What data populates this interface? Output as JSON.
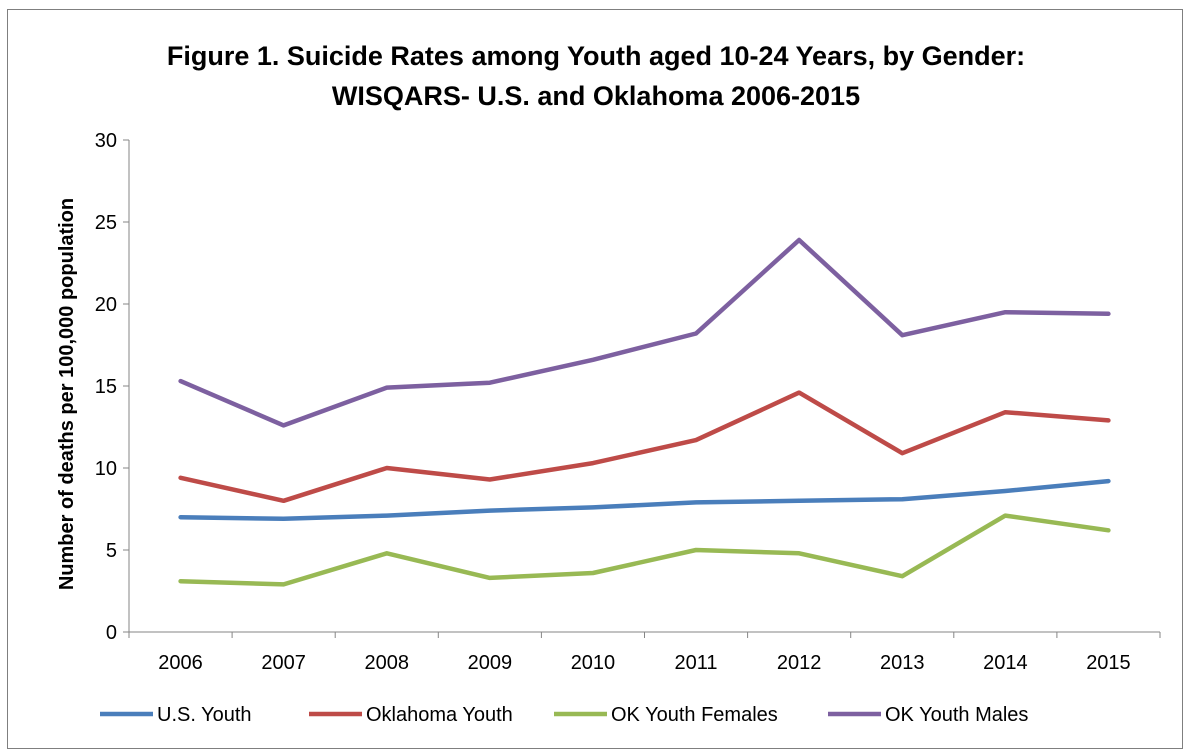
{
  "chart_data": {
    "type": "line",
    "title": [
      "Figure 1. Suicide Rates among Youth aged 10-24 Years, by Gender:",
      "WISQARS- U.S. and Oklahoma 2006-2015"
    ],
    "xlabel": "",
    "ylabel": "Number of deaths per 100,000 population",
    "categories": [
      "2006",
      "2007",
      "2008",
      "2009",
      "2010",
      "2011",
      "2012",
      "2013",
      "2014",
      "2015"
    ],
    "ylim": [
      0,
      30
    ],
    "yticks": [
      "0",
      "5",
      "10",
      "15",
      "20",
      "25",
      "30"
    ],
    "grid": false,
    "legend_position": "bottom",
    "series": [
      {
        "name": "U.S. Youth",
        "color": "#4a7ebb",
        "values": [
          7.0,
          6.9,
          7.1,
          7.4,
          7.6,
          7.9,
          8.0,
          8.1,
          8.6,
          9.2
        ]
      },
      {
        "name": "Oklahoma Youth",
        "color": "#be4b48",
        "values": [
          9.4,
          8.0,
          10.0,
          9.3,
          10.3,
          11.7,
          14.6,
          10.9,
          13.4,
          12.9
        ]
      },
      {
        "name": "OK Youth Females",
        "color": "#98b954",
        "values": [
          3.1,
          2.9,
          4.8,
          3.3,
          3.6,
          5.0,
          4.8,
          3.4,
          7.1,
          6.2
        ]
      },
      {
        "name": "OK Youth Males",
        "color": "#7d60a0",
        "values": [
          15.3,
          12.6,
          14.9,
          15.2,
          16.6,
          18.2,
          23.9,
          18.1,
          19.5,
          19.4
        ]
      }
    ]
  }
}
